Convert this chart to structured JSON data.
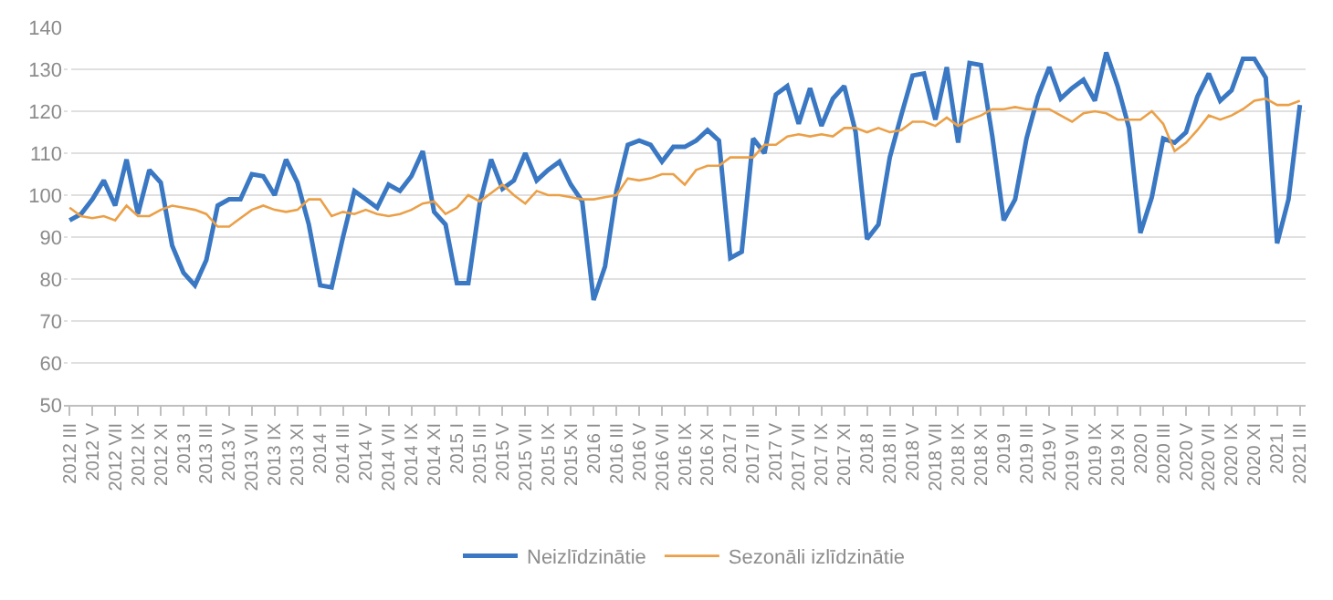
{
  "chart_data": {
    "type": "line",
    "categories": [
      "2012 III",
      null,
      "2012 V",
      null,
      "2012 VII",
      null,
      "2012 IX",
      null,
      "2012 XI",
      null,
      "2013 I",
      null,
      "2013 III",
      null,
      "2013 V",
      null,
      "2013 VII",
      null,
      "2013 IX",
      null,
      "2013 XI",
      null,
      "2014 I",
      null,
      "2014 III",
      null,
      "2014 V",
      null,
      "2014 VII",
      null,
      "2014 IX",
      null,
      "2014 XI",
      null,
      "2015 I",
      null,
      "2015 III",
      null,
      "2015 V",
      null,
      "2015 VII",
      null,
      "2015 IX",
      null,
      "2015 XI",
      null,
      "2016 I",
      null,
      "2016 III",
      null,
      "2016 V",
      null,
      "2016 VII",
      null,
      "2016 IX",
      null,
      "2016 XI",
      null,
      "2017 I",
      null,
      "2017 III",
      null,
      "2017 V",
      null,
      "2017 VII",
      null,
      "2017 IX",
      null,
      "2017 XI",
      null,
      "2018 I",
      null,
      "2018 III",
      null,
      "2018 V",
      null,
      "2018 VII",
      null,
      "2018 IX",
      null,
      "2018 XI",
      null,
      "2019 I",
      null,
      "2019 III",
      null,
      "2019 V",
      null,
      "2019 VII",
      null,
      "2019 IX",
      null,
      "2019 XI",
      null,
      "2020 I",
      null,
      "2020 III",
      null,
      "2020 V",
      null,
      "2020 VII",
      null,
      "2020 IX",
      null,
      "2020 XI",
      null,
      "2021 I",
      null,
      "2021 III"
    ],
    "series": [
      {
        "name": "Neizlīdzinātie",
        "color": "#3a78c3",
        "values": [
          94,
          95.5,
          99,
          103.5,
          97.5,
          108.5,
          95.5,
          106,
          103,
          88,
          81.5,
          78.5,
          84.5,
          97.5,
          99,
          99,
          105,
          104.5,
          100,
          108.5,
          103,
          93,
          78.5,
          78,
          90,
          101,
          99,
          97,
          102.5,
          101,
          104.5,
          110.5,
          96,
          93,
          79,
          79,
          98,
          108.5,
          101.5,
          103.5,
          110,
          103.5,
          106,
          108,
          102.5,
          98.5,
          75,
          83,
          101,
          112,
          113,
          112,
          108,
          111.5,
          111.5,
          113,
          115.5,
          113,
          85,
          86.5,
          113.5,
          110,
          124,
          126,
          117,
          125.5,
          116.5,
          123,
          126,
          115,
          89.5,
          93,
          109,
          119,
          128.5,
          129,
          118,
          130.5,
          112.5,
          131.5,
          131,
          114,
          94,
          99,
          113.5,
          123.5,
          130.5,
          123,
          125.5,
          127.5,
          122.5,
          134,
          126,
          116,
          91,
          99.5,
          113.5,
          112.5,
          115,
          123.5,
          129,
          122.5,
          125,
          132.5,
          132.5,
          128,
          88.5,
          99,
          121.5
        ]
      },
      {
        "name": "Sezonāli izlīdzinātie",
        "color": "#eba048",
        "values": [
          97,
          95,
          94.5,
          95,
          94,
          97.5,
          95,
          95,
          96.5,
          97.5,
          97,
          96.5,
          95.5,
          92.5,
          92.5,
          94.5,
          96.5,
          97.5,
          96.5,
          96,
          96.5,
          99,
          99,
          95,
          96,
          95.5,
          96.5,
          95.5,
          95,
          95.5,
          96.5,
          98,
          98.5,
          95.5,
          97,
          100,
          98.5,
          100.5,
          102.5,
          100,
          98,
          101,
          100,
          100,
          99.5,
          99,
          99,
          99.5,
          100,
          104,
          103.5,
          104,
          105,
          105,
          102.5,
          106,
          107,
          107,
          109,
          109,
          109,
          112,
          112,
          114,
          114.5,
          114,
          114.5,
          114,
          116,
          116,
          115,
          116,
          115,
          115.5,
          117.5,
          117.5,
          116.5,
          118.5,
          116.5,
          118,
          119,
          120.5,
          120.5,
          121,
          120.5,
          120.5,
          120.5,
          119,
          117.5,
          119.5,
          120,
          119.5,
          118,
          118,
          118,
          120,
          117,
          110.5,
          112.5,
          115.5,
          119,
          118,
          119,
          120.5,
          122.5,
          123,
          121.5,
          121.5,
          122.5
        ]
      }
    ],
    "ylim": [
      50,
      140
    ],
    "yticks": [
      50,
      60,
      70,
      80,
      90,
      100,
      110,
      120,
      130,
      140
    ],
    "grid": "y",
    "legend": "bottom",
    "marker": "none",
    "line_style": "solid"
  }
}
